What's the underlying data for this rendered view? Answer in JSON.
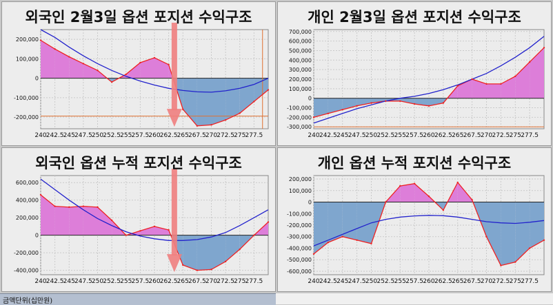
{
  "footer": {
    "unit_label": "금액단위(십만원)"
  },
  "colors": {
    "background": "#ececec",
    "grid": "#c9c9c9",
    "positive_fill": "#dd7ed9",
    "negative_fill": "#7fa6ce",
    "profit_line": "#ee2222",
    "curve_line": "#2222cc",
    "zero_line": "#222222",
    "arrow": "#ef7f7f",
    "ref_line": "#e07030"
  },
  "chart_data": [
    {
      "type": "area",
      "title": "외국인 2월3일 옵션 포지션 수익구조",
      "categories": [
        "240",
        "242.5",
        "245",
        "247.5",
        "250",
        "252.5",
        "255",
        "257.5",
        "260",
        "262.5",
        "265",
        "267.5",
        "270",
        "272.5",
        "275",
        "277.5"
      ],
      "ylim": [
        -260000,
        250000
      ],
      "yticks": [
        -200000,
        -100000,
        0,
        100000,
        200000
      ],
      "ytick_labels": [
        "-200,000",
        "-100,000",
        "0",
        "100,000",
        "200,000"
      ],
      "series": [
        {
          "role": "profit",
          "x": [
            240,
            242.5,
            245,
            247.5,
            250,
            252.5,
            255,
            257.5,
            260,
            262.5,
            265,
            267.5,
            270,
            272.5,
            275,
            277.5,
            280
          ],
          "values": [
            195000,
            150000,
            110000,
            75000,
            40000,
            -20000,
            20000,
            80000,
            105000,
            70000,
            -160000,
            -245000,
            -240000,
            -215000,
            -180000,
            -120000,
            -60000
          ]
        },
        {
          "role": "curve",
          "x": [
            240,
            242.5,
            245,
            247.5,
            250,
            252.5,
            255,
            257.5,
            260,
            262.5,
            265,
            267.5,
            270,
            272.5,
            275,
            277.5,
            280
          ],
          "values": [
            265000,
            210000,
            160000,
            115000,
            75000,
            40000,
            10000,
            -15000,
            -35000,
            -52000,
            -63000,
            -70000,
            -72000,
            -65000,
            -52000,
            -32000,
            0
          ]
        }
      ],
      "arrow": {
        "x": 263.5,
        "from": 300000,
        "to": -250000
      },
      "ref_lines": {
        "y": -195000,
        "x": 279
      }
    },
    {
      "type": "area",
      "title": "개인 2월3일 옵션 포지션 수익구조",
      "categories": [
        "240",
        "242.5",
        "245",
        "247.5",
        "250",
        "252.5",
        "255",
        "257.5",
        "260",
        "262.5",
        "265",
        "267.5",
        "270",
        "272.5",
        "275",
        "277.5"
      ],
      "ylim": [
        -320000,
        720000
      ],
      "yticks": [
        -300000,
        -200000,
        -100000,
        0,
        100000,
        200000,
        300000,
        400000,
        500000,
        600000,
        700000
      ],
      "ytick_labels": [
        "-300,000",
        "-200,000",
        "-100,000",
        "0",
        "100,000",
        "200,000",
        "300,000",
        "400,000",
        "500,000",
        "600,000",
        "700,000"
      ],
      "series": [
        {
          "role": "profit",
          "x": [
            240,
            242.5,
            245,
            247.5,
            250,
            252.5,
            255,
            257.5,
            260,
            262.5,
            265,
            267.5,
            270,
            272.5,
            275,
            277.5,
            280
          ],
          "values": [
            -200000,
            -160000,
            -120000,
            -80000,
            -50000,
            -30000,
            -30000,
            -60000,
            -80000,
            -50000,
            130000,
            200000,
            150000,
            150000,
            230000,
            380000,
            530000
          ]
        },
        {
          "role": "curve",
          "x": [
            240,
            242.5,
            245,
            247.5,
            250,
            252.5,
            255,
            257.5,
            260,
            262.5,
            265,
            267.5,
            270,
            272.5,
            275,
            277.5,
            280
          ],
          "values": [
            -260000,
            -210000,
            -160000,
            -110000,
            -70000,
            -30000,
            0,
            20000,
            50000,
            90000,
            140000,
            200000,
            260000,
            340000,
            430000,
            530000,
            650000
          ]
        }
      ],
      "ref_lines": {
        "y": -300000
      }
    },
    {
      "type": "area",
      "title": "외국인 옵션 누적 포지션 수익구조",
      "categories": [
        "240",
        "242.5",
        "245",
        "247.5",
        "250",
        "252.5",
        "255",
        "257.5",
        "260",
        "262.5",
        "265",
        "267.5",
        "270",
        "272.5",
        "275",
        "277.5"
      ],
      "ylim": [
        -450000,
        680000
      ],
      "yticks": [
        -400000,
        -200000,
        0,
        200000,
        400000,
        600000
      ],
      "ytick_labels": [
        "-400,000",
        "-200,000",
        "0",
        "200,000",
        "400,000",
        "600,000"
      ],
      "series": [
        {
          "role": "profit",
          "x": [
            240,
            242.5,
            245,
            247.5,
            250,
            252.5,
            255,
            257.5,
            260,
            262.5,
            265,
            267.5,
            270,
            272.5,
            275,
            277.5,
            280
          ],
          "values": [
            460000,
            330000,
            320000,
            330000,
            320000,
            170000,
            0,
            50000,
            100000,
            60000,
            -340000,
            -400000,
            -390000,
            -300000,
            -160000,
            0,
            150000
          ]
        },
        {
          "role": "curve",
          "x": [
            240,
            242.5,
            245,
            247.5,
            250,
            252.5,
            255,
            257.5,
            260,
            262.5,
            265,
            267.5,
            270,
            272.5,
            275,
            277.5,
            280
          ],
          "values": [
            640000,
            520000,
            400000,
            290000,
            190000,
            110000,
            40000,
            -10000,
            -40000,
            -60000,
            -60000,
            -50000,
            -20000,
            30000,
            110000,
            200000,
            290000
          ]
        }
      ],
      "arrow": {
        "x": 263.5,
        "from": 760000,
        "to": -420000
      }
    },
    {
      "type": "area",
      "title": "개인 옵션 누적 포지션 수익구조",
      "categories": [
        "240",
        "242.5",
        "245",
        "247.5",
        "250",
        "252.5",
        "255",
        "257.5",
        "260",
        "262.5",
        "265",
        "267.5",
        "270",
        "272.5",
        "275",
        "277.5"
      ],
      "ylim": [
        -630000,
        230000
      ],
      "yticks": [
        -600000,
        -500000,
        -400000,
        -300000,
        -200000,
        -100000,
        0,
        100000,
        200000
      ],
      "ytick_labels": [
        "-600,000",
        "-500,000",
        "-400,000",
        "-300,000",
        "-200,000",
        "-100,000",
        "0",
        "100,000",
        "200,000"
      ],
      "series": [
        {
          "role": "profit",
          "x": [
            240,
            242.5,
            245,
            247.5,
            250,
            252.5,
            255,
            257.5,
            260,
            262.5,
            265,
            267.5,
            270,
            272.5,
            275,
            277.5,
            280
          ],
          "values": [
            -450000,
            -350000,
            -300000,
            -330000,
            -360000,
            0,
            140000,
            160000,
            50000,
            -70000,
            170000,
            20000,
            -300000,
            -550000,
            -520000,
            -400000,
            -330000
          ]
        },
        {
          "role": "curve",
          "x": [
            240,
            242.5,
            245,
            247.5,
            250,
            252.5,
            255,
            257.5,
            260,
            262.5,
            265,
            267.5,
            270,
            272.5,
            275,
            277.5,
            280
          ],
          "values": [
            -380000,
            -330000,
            -280000,
            -230000,
            -180000,
            -150000,
            -130000,
            -120000,
            -115000,
            -118000,
            -130000,
            -150000,
            -170000,
            -180000,
            -185000,
            -175000,
            -160000
          ]
        }
      ]
    }
  ]
}
